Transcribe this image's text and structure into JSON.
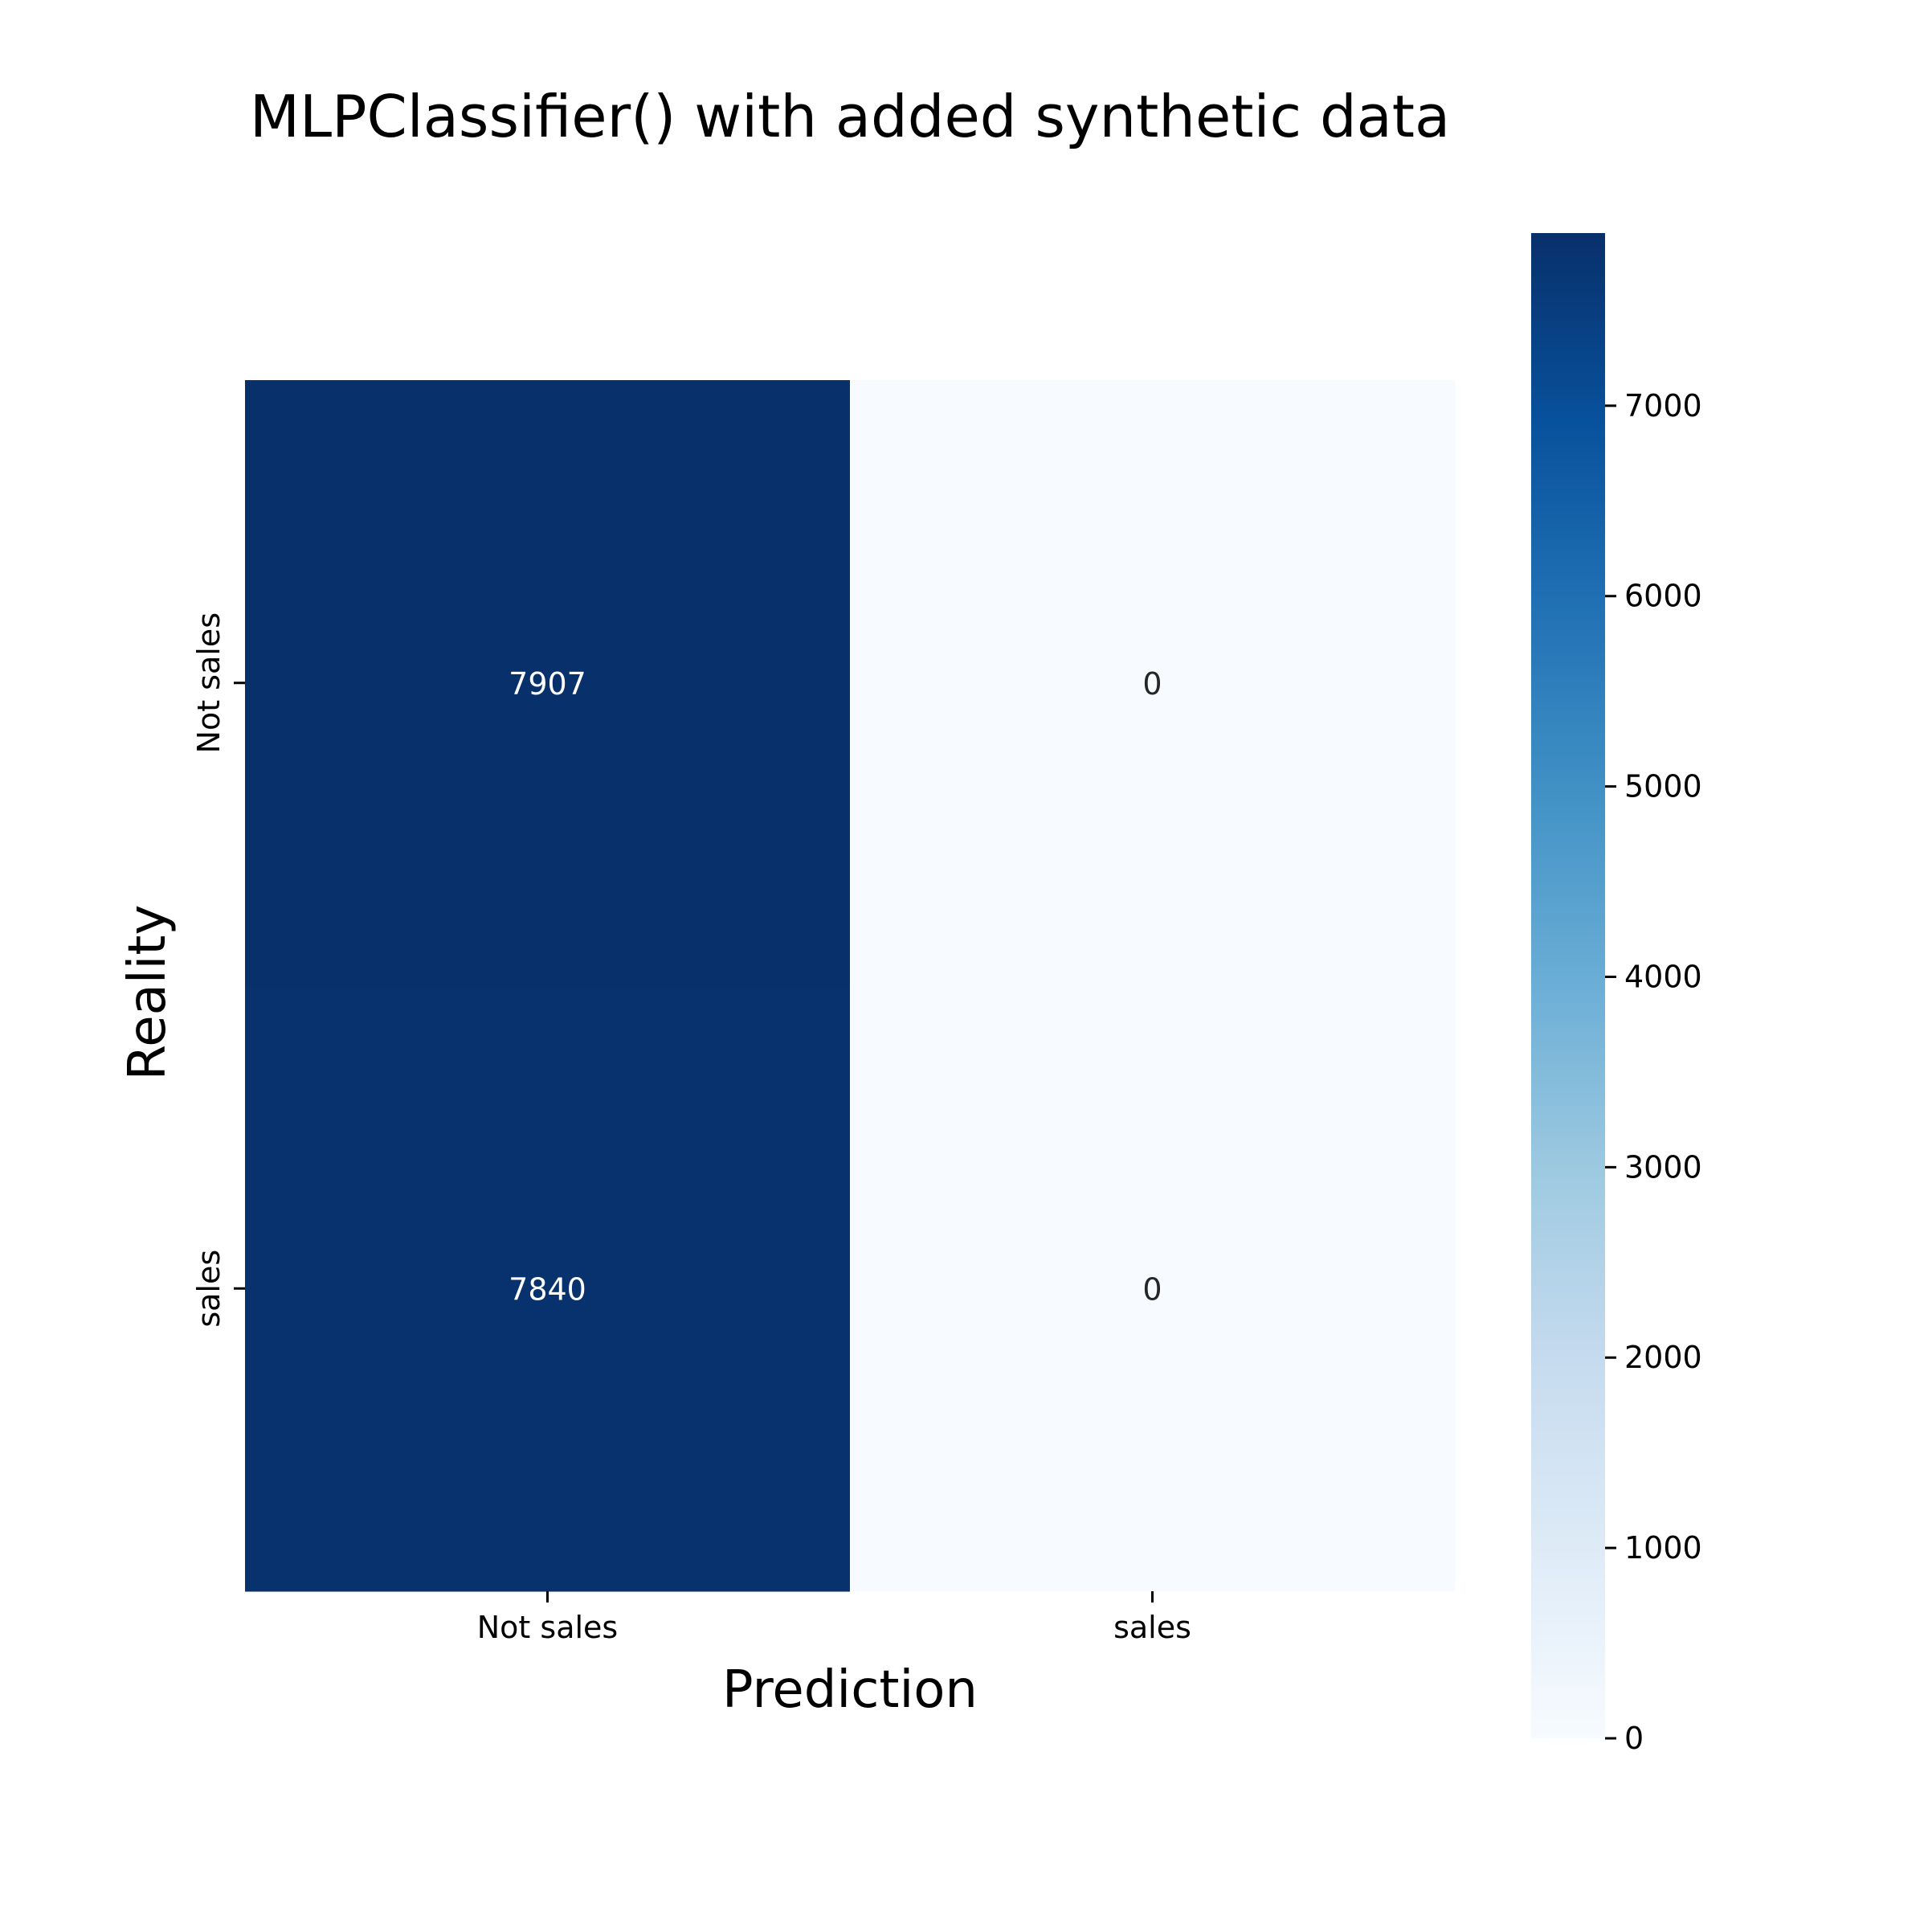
{
  "chart_data": {
    "type": "heatmap",
    "title": "MLPClassifier() with added synthetic data",
    "xlabel": "Prediction",
    "ylabel": "Reality",
    "x_categories": [
      "Not sales",
      "sales"
    ],
    "y_categories": [
      "Not sales",
      "sales"
    ],
    "values": [
      [
        7907,
        0
      ],
      [
        7840,
        0
      ]
    ],
    "colormap": "Blues",
    "color_low": "#f7fbff",
    "color_high": "#08306b",
    "colorbar": {
      "range": [
        0,
        7907
      ],
      "ticks": [
        0,
        1000,
        2000,
        3000,
        4000,
        5000,
        6000,
        7000
      ],
      "tick_labels": [
        "0",
        "1000",
        "2000",
        "3000",
        "4000",
        "5000",
        "6000",
        "7000"
      ]
    },
    "grid": false,
    "legend": "colorbar-right"
  }
}
